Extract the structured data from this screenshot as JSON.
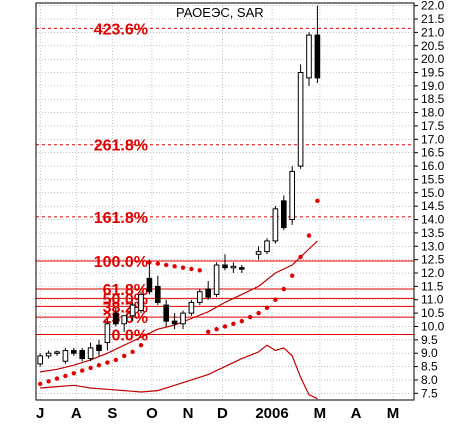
{
  "chart_data": {
    "type": "candlestick",
    "title": "РАОЕЭС, SAR",
    "ylim": [
      7.25,
      22.1
    ],
    "y_ticks": [
      "22.0",
      "21.5",
      "21.0",
      "20.5",
      "20.0",
      "19.5",
      "19.0",
      "18.5",
      "18.0",
      "17.5",
      "17.0",
      "16.5",
      "16.0",
      "15.5",
      "15.0",
      "14.5",
      "14.0",
      "13.5",
      "13.0",
      "12.5",
      "12.0",
      "11.5",
      "11.0",
      "10.5",
      "10.0",
      "9.5",
      "9.0",
      "8.5",
      "8.0",
      "7.5"
    ],
    "x_ticks": [
      "J",
      "A",
      "S",
      "O",
      "N",
      "D",
      "2006",
      "M",
      "A",
      "M"
    ],
    "x_tick_positions": [
      0,
      4.3,
      8.6,
      13.3,
      17.6,
      21.7,
      27.6,
      33.3,
      37.6,
      42
    ],
    "x_range": [
      -0.5,
      44.5
    ],
    "grid": true,
    "colors": {
      "fib": "#e00000",
      "sar": "#e00000",
      "ma": "#c00000",
      "candle": "#000000"
    },
    "fibonacci": [
      {
        "label": "423.6%",
        "value": 21.15,
        "style": "dashed"
      },
      {
        "label": "261.8%",
        "value": 16.8,
        "style": "dashed"
      },
      {
        "label": "161.8%",
        "value": 14.1,
        "style": "dashed"
      },
      {
        "label": "100.0%",
        "value": 12.45,
        "style": "solid"
      },
      {
        "label": "61.8%",
        "value": 11.4,
        "style": "solid"
      },
      {
        "label": "50.0%",
        "value": 11.05,
        "style": "solid"
      },
      {
        "label": "38.2%",
        "value": 10.75,
        "style": "solid"
      },
      {
        "label": "23.6%",
        "value": 10.35,
        "style": "solid"
      },
      {
        "label": "0.0%",
        "value": 9.7,
        "style": "solid"
      }
    ],
    "candles": [
      {
        "x": 0,
        "o": 8.6,
        "h": 9.0,
        "l": 8.5,
        "c": 8.9
      },
      {
        "x": 1,
        "o": 8.9,
        "h": 9.1,
        "l": 8.8,
        "c": 9.0
      },
      {
        "x": 2,
        "o": 9.0,
        "h": 9.1,
        "l": 8.9,
        "c": 9.05
      },
      {
        "x": 3,
        "o": 8.7,
        "h": 9.2,
        "l": 8.6,
        "c": 9.1
      },
      {
        "x": 4,
        "o": 9.1,
        "h": 9.2,
        "l": 8.9,
        "c": 9.0
      },
      {
        "x": 5,
        "o": 9.1,
        "h": 9.2,
        "l": 8.7,
        "c": 8.8
      },
      {
        "x": 6,
        "o": 8.8,
        "h": 9.4,
        "l": 8.7,
        "c": 9.2
      },
      {
        "x": 7,
        "o": 9.3,
        "h": 9.5,
        "l": 8.9,
        "c": 9.1
      },
      {
        "x": 8,
        "o": 9.4,
        "h": 10.3,
        "l": 9.1,
        "c": 10.1
      },
      {
        "x": 9,
        "o": 10.5,
        "h": 10.7,
        "l": 10.0,
        "c": 10.1
      },
      {
        "x": 10,
        "o": 10.1,
        "h": 10.4,
        "l": 9.8,
        "c": 10.4
      },
      {
        "x": 11,
        "o": 10.4,
        "h": 10.9,
        "l": 10.2,
        "c": 10.8
      },
      {
        "x": 12,
        "o": 10.6,
        "h": 11.3,
        "l": 10.5,
        "c": 11.2
      },
      {
        "x": 13,
        "o": 11.8,
        "h": 12.5,
        "l": 11.2,
        "c": 11.3
      },
      {
        "x": 14,
        "o": 11.5,
        "h": 11.9,
        "l": 10.8,
        "c": 10.9
      },
      {
        "x": 15,
        "o": 10.8,
        "h": 11.0,
        "l": 10.0,
        "c": 10.2
      },
      {
        "x": 16,
        "o": 10.2,
        "h": 10.5,
        "l": 9.9,
        "c": 10.1
      },
      {
        "x": 17,
        "o": 10.1,
        "h": 10.6,
        "l": 9.9,
        "c": 10.5
      },
      {
        "x": 18,
        "o": 10.5,
        "h": 11.0,
        "l": 10.4,
        "c": 10.9
      },
      {
        "x": 19,
        "o": 10.9,
        "h": 11.4,
        "l": 10.8,
        "c": 11.3
      },
      {
        "x": 20,
        "o": 11.4,
        "h": 11.7,
        "l": 11.0,
        "c": 11.1
      },
      {
        "x": 21,
        "o": 11.2,
        "h": 12.4,
        "l": 11.1,
        "c": 12.3
      },
      {
        "x": 22,
        "o": 12.3,
        "h": 12.7,
        "l": 12.1,
        "c": 12.2
      },
      {
        "x": 23,
        "o": 12.2,
        "h": 12.4,
        "l": 12.0,
        "c": 12.25
      },
      {
        "x": 24,
        "o": 12.2,
        "h": 12.3,
        "l": 12.0,
        "c": 12.15
      },
      {
        "x": 26,
        "o": 12.7,
        "h": 13.0,
        "l": 12.5,
        "c": 12.8
      },
      {
        "x": 27,
        "o": 12.8,
        "h": 13.3,
        "l": 12.7,
        "c": 13.2
      },
      {
        "x": 28,
        "o": 13.2,
        "h": 14.5,
        "l": 13.1,
        "c": 14.4
      },
      {
        "x": 29,
        "o": 14.7,
        "h": 14.9,
        "l": 13.6,
        "c": 13.7
      },
      {
        "x": 30,
        "o": 14.0,
        "h": 16.0,
        "l": 13.8,
        "c": 15.8
      },
      {
        "x": 31,
        "o": 16.0,
        "h": 19.8,
        "l": 15.9,
        "c": 19.5
      },
      {
        "x": 32,
        "o": 19.3,
        "h": 21.0,
        "l": 19.0,
        "c": 20.9
      },
      {
        "x": 33,
        "o": 20.9,
        "h": 22.0,
        "l": 19.1,
        "c": 19.3
      }
    ],
    "sar": [
      {
        "x": 0,
        "y": 7.85
      },
      {
        "x": 1,
        "y": 7.95
      },
      {
        "x": 2,
        "y": 8.05
      },
      {
        "x": 3,
        "y": 8.15
      },
      {
        "x": 4,
        "y": 8.25
      },
      {
        "x": 5,
        "y": 8.35
      },
      {
        "x": 6,
        "y": 8.45
      },
      {
        "x": 7,
        "y": 8.55
      },
      {
        "x": 8,
        "y": 8.65
      },
      {
        "x": 9,
        "y": 8.75
      },
      {
        "x": 10,
        "y": 8.9
      },
      {
        "x": 11,
        "y": 9.05
      },
      {
        "x": 12,
        "y": 9.3
      },
      {
        "x": 13,
        "y": 12.4
      },
      {
        "x": 14,
        "y": 12.35
      },
      {
        "x": 15,
        "y": 12.3
      },
      {
        "x": 16,
        "y": 12.25
      },
      {
        "x": 17,
        "y": 12.2
      },
      {
        "x": 18,
        "y": 12.15
      },
      {
        "x": 19,
        "y": 12.1
      },
      {
        "x": 20,
        "y": 9.8
      },
      {
        "x": 21,
        "y": 9.9
      },
      {
        "x": 22,
        "y": 10.0
      },
      {
        "x": 23,
        "y": 10.1
      },
      {
        "x": 24,
        "y": 10.2
      },
      {
        "x": 25,
        "y": 10.35
      },
      {
        "x": 26,
        "y": 10.5
      },
      {
        "x": 27,
        "y": 10.7
      },
      {
        "x": 28,
        "y": 11.0
      },
      {
        "x": 29,
        "y": 11.4
      },
      {
        "x": 30,
        "y": 11.9
      },
      {
        "x": 31,
        "y": 12.6
      },
      {
        "x": 32,
        "y": 13.4
      },
      {
        "x": 33,
        "y": 14.7
      }
    ],
    "ma_upper": [
      {
        "x": 0,
        "y": 8.3
      },
      {
        "x": 2,
        "y": 8.4
      },
      {
        "x": 4,
        "y": 8.55
      },
      {
        "x": 6,
        "y": 8.75
      },
      {
        "x": 8,
        "y": 9.0
      },
      {
        "x": 10,
        "y": 9.3
      },
      {
        "x": 12,
        "y": 9.6
      },
      {
        "x": 14,
        "y": 9.9
      },
      {
        "x": 16,
        "y": 10.05
      },
      {
        "x": 18,
        "y": 10.3
      },
      {
        "x": 20,
        "y": 10.55
      },
      {
        "x": 22,
        "y": 10.9
      },
      {
        "x": 24,
        "y": 11.2
      },
      {
        "x": 26,
        "y": 11.5
      },
      {
        "x": 28,
        "y": 12.0
      },
      {
        "x": 30,
        "y": 12.3
      },
      {
        "x": 32,
        "y": 12.9
      },
      {
        "x": 33,
        "y": 13.2
      }
    ],
    "ma_lower": [
      {
        "x": 0,
        "y": 7.7
      },
      {
        "x": 2,
        "y": 7.75
      },
      {
        "x": 4,
        "y": 7.8
      },
      {
        "x": 6,
        "y": 7.7
      },
      {
        "x": 8,
        "y": 7.65
      },
      {
        "x": 10,
        "y": 7.6
      },
      {
        "x": 12,
        "y": 7.55
      },
      {
        "x": 14,
        "y": 7.6
      },
      {
        "x": 16,
        "y": 7.8
      },
      {
        "x": 18,
        "y": 8.0
      },
      {
        "x": 20,
        "y": 8.2
      },
      {
        "x": 22,
        "y": 8.5
      },
      {
        "x": 24,
        "y": 8.8
      },
      {
        "x": 26,
        "y": 9.05
      },
      {
        "x": 27,
        "y": 9.3
      },
      {
        "x": 28,
        "y": 9.1
      },
      {
        "x": 29,
        "y": 9.2
      },
      {
        "x": 30,
        "y": 8.9
      },
      {
        "x": 31,
        "y": 8.1
      },
      {
        "x": 32,
        "y": 7.45
      },
      {
        "x": 33,
        "y": 7.3
      }
    ]
  }
}
